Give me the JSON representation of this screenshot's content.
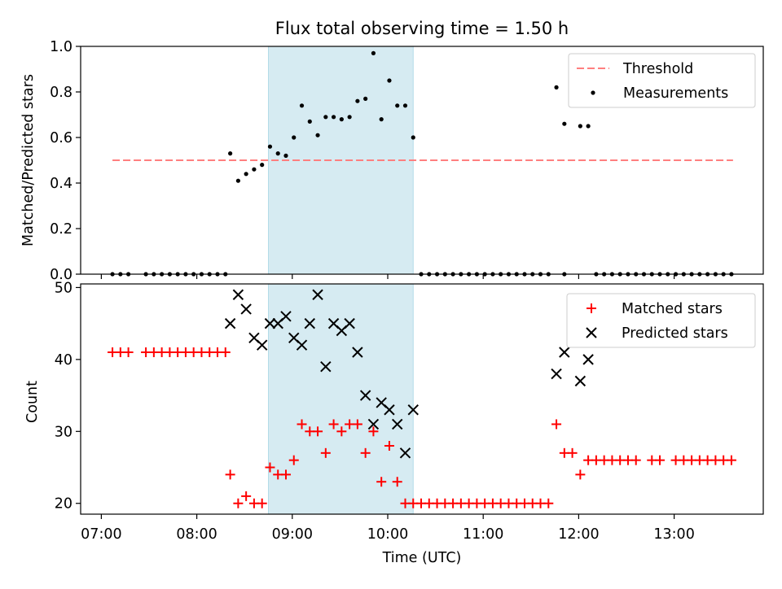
{
  "chart_data": [
    {
      "type": "scatter",
      "title": "Flux total observing time = 1.50 h",
      "xlabel": "",
      "ylabel": "Matched/Predicted stars",
      "ylim": [
        0.0,
        1.0
      ],
      "yticks": [
        "0.0",
        "0.2",
        "0.4",
        "0.6",
        "0.8",
        "1.0"
      ],
      "xlim": [
        "06:47",
        "13:56"
      ],
      "shaded_region": [
        "08:45",
        "10:16"
      ],
      "shaded_color": "#add8e6",
      "legend_position": "top-right",
      "threshold": {
        "name": "Threshold",
        "value": 0.5,
        "x_start": "07:07",
        "x_end": "13:37",
        "color": "#ff7f7f",
        "style": "dashed"
      },
      "series": [
        {
          "name": "Measurements",
          "color": "#000000",
          "marker": "dot",
          "points": [
            [
              "07:07",
              0
            ],
            [
              "07:12",
              0
            ],
            [
              "07:17",
              0
            ],
            [
              "07:28",
              0
            ],
            [
              "07:33",
              0
            ],
            [
              "07:38",
              0
            ],
            [
              "07:43",
              0
            ],
            [
              "07:48",
              0
            ],
            [
              "07:53",
              0
            ],
            [
              "07:58",
              0
            ],
            [
              "08:03",
              0
            ],
            [
              "08:08",
              0
            ],
            [
              "08:13",
              0
            ],
            [
              "08:18",
              0
            ],
            [
              "08:21",
              0.53
            ],
            [
              "08:26",
              0.41
            ],
            [
              "08:31",
              0.44
            ],
            [
              "08:36",
              0.46
            ],
            [
              "08:41",
              0.48
            ],
            [
              "08:46",
              0.56
            ],
            [
              "08:51",
              0.53
            ],
            [
              "08:56",
              0.52
            ],
            [
              "09:01",
              0.6
            ],
            [
              "09:06",
              0.74
            ],
            [
              "09:11",
              0.67
            ],
            [
              "09:16",
              0.61
            ],
            [
              "09:21",
              0.69
            ],
            [
              "09:26",
              0.69
            ],
            [
              "09:31",
              0.68
            ],
            [
              "09:36",
              0.69
            ],
            [
              "09:41",
              0.76
            ],
            [
              "09:46",
              0.77
            ],
            [
              "09:51",
              0.97
            ],
            [
              "09:56",
              0.68
            ],
            [
              "10:01",
              0.85
            ],
            [
              "10:06",
              0.74
            ],
            [
              "10:11",
              0.74
            ],
            [
              "10:16",
              0.6
            ],
            [
              "10:21",
              0
            ],
            [
              "10:26",
              0
            ],
            [
              "10:31",
              0
            ],
            [
              "10:36",
              0
            ],
            [
              "10:41",
              0
            ],
            [
              "10:46",
              0
            ],
            [
              "10:51",
              0
            ],
            [
              "10:56",
              0
            ],
            [
              "11:01",
              0
            ],
            [
              "11:06",
              0
            ],
            [
              "11:11",
              0
            ],
            [
              "11:16",
              0
            ],
            [
              "11:21",
              0
            ],
            [
              "11:26",
              0
            ],
            [
              "11:31",
              0
            ],
            [
              "11:36",
              0
            ],
            [
              "11:41",
              0
            ],
            [
              "11:51",
              0
            ],
            [
              "11:46",
              0.82
            ],
            [
              "11:51",
              0.66
            ],
            [
              "12:01",
              0.65
            ],
            [
              "12:06",
              0.65
            ],
            [
              "12:11",
              0
            ],
            [
              "12:16",
              0
            ],
            [
              "12:21",
              0
            ],
            [
              "12:26",
              0
            ],
            [
              "12:31",
              0
            ],
            [
              "12:36",
              0
            ],
            [
              "12:41",
              0
            ],
            [
              "12:46",
              0
            ],
            [
              "12:51",
              0
            ],
            [
              "12:56",
              0
            ],
            [
              "13:01",
              0
            ],
            [
              "13:06",
              0
            ],
            [
              "13:11",
              0
            ],
            [
              "13:16",
              0
            ],
            [
              "13:21",
              0
            ],
            [
              "13:26",
              0
            ],
            [
              "13:31",
              0
            ],
            [
              "13:36",
              0
            ]
          ]
        }
      ]
    },
    {
      "type": "scatter",
      "title": "",
      "xlabel": "Time (UTC)",
      "ylabel": "Count",
      "ylim": [
        18.5,
        50.5
      ],
      "yticks": [
        "20",
        "30",
        "40",
        "50"
      ],
      "xticks": [
        "07:00",
        "08:00",
        "09:00",
        "10:00",
        "11:00",
        "12:00",
        "13:00"
      ],
      "xlim": [
        "06:47",
        "13:56"
      ],
      "shaded_region": [
        "08:45",
        "10:16"
      ],
      "shaded_color": "#add8e6",
      "legend_position": "top-right",
      "series": [
        {
          "name": "Matched stars",
          "color": "#ff0000",
          "marker": "plus",
          "points": [
            [
              "07:07",
              41
            ],
            [
              "07:12",
              41
            ],
            [
              "07:17",
              41
            ],
            [
              "07:28",
              41
            ],
            [
              "07:33",
              41
            ],
            [
              "07:38",
              41
            ],
            [
              "07:43",
              41
            ],
            [
              "07:48",
              41
            ],
            [
              "07:53",
              41
            ],
            [
              "07:58",
              41
            ],
            [
              "08:03",
              41
            ],
            [
              "08:08",
              41
            ],
            [
              "08:13",
              41
            ],
            [
              "08:18",
              41
            ],
            [
              "08:21",
              24
            ],
            [
              "08:26",
              20
            ],
            [
              "08:31",
              21
            ],
            [
              "08:36",
              20
            ],
            [
              "08:41",
              20
            ],
            [
              "08:46",
              25
            ],
            [
              "08:51",
              24
            ],
            [
              "08:56",
              24
            ],
            [
              "09:01",
              26
            ],
            [
              "09:06",
              31
            ],
            [
              "09:11",
              30
            ],
            [
              "09:16",
              30
            ],
            [
              "09:21",
              27
            ],
            [
              "09:26",
              31
            ],
            [
              "09:31",
              30
            ],
            [
              "09:36",
              31
            ],
            [
              "09:41",
              31
            ],
            [
              "09:46",
              27
            ],
            [
              "09:51",
              30
            ],
            [
              "09:56",
              23
            ],
            [
              "10:01",
              28
            ],
            [
              "10:06",
              23
            ],
            [
              "10:11",
              20
            ],
            [
              "10:16",
              20
            ],
            [
              "10:21",
              20
            ],
            [
              "10:26",
              20
            ],
            [
              "10:31",
              20
            ],
            [
              "10:36",
              20
            ],
            [
              "10:41",
              20
            ],
            [
              "10:46",
              20
            ],
            [
              "10:51",
              20
            ],
            [
              "10:56",
              20
            ],
            [
              "11:01",
              20
            ],
            [
              "11:06",
              20
            ],
            [
              "11:11",
              20
            ],
            [
              "11:16",
              20
            ],
            [
              "11:21",
              20
            ],
            [
              "11:26",
              20
            ],
            [
              "11:31",
              20
            ],
            [
              "11:36",
              20
            ],
            [
              "11:41",
              20
            ],
            [
              "11:46",
              31
            ],
            [
              "11:51",
              27
            ],
            [
              "11:56",
              27
            ],
            [
              "12:01",
              24
            ],
            [
              "12:06",
              26
            ],
            [
              "12:11",
              26
            ],
            [
              "12:16",
              26
            ],
            [
              "12:21",
              26
            ],
            [
              "12:26",
              26
            ],
            [
              "12:31",
              26
            ],
            [
              "12:36",
              26
            ],
            [
              "12:46",
              26
            ],
            [
              "12:51",
              26
            ],
            [
              "13:01",
              26
            ],
            [
              "13:06",
              26
            ],
            [
              "13:11",
              26
            ],
            [
              "13:16",
              26
            ],
            [
              "13:21",
              26
            ],
            [
              "13:26",
              26
            ],
            [
              "13:31",
              26
            ],
            [
              "13:36",
              26
            ]
          ]
        },
        {
          "name": "Predicted stars",
          "color": "#000000",
          "marker": "x",
          "points": [
            [
              "08:21",
              45
            ],
            [
              "08:26",
              49
            ],
            [
              "08:31",
              47
            ],
            [
              "08:36",
              43
            ],
            [
              "08:41",
              42
            ],
            [
              "08:46",
              45
            ],
            [
              "08:51",
              45
            ],
            [
              "08:56",
              46
            ],
            [
              "09:01",
              43
            ],
            [
              "09:06",
              42
            ],
            [
              "09:11",
              45
            ],
            [
              "09:16",
              49
            ],
            [
              "09:21",
              39
            ],
            [
              "09:26",
              45
            ],
            [
              "09:31",
              44
            ],
            [
              "09:36",
              45
            ],
            [
              "09:41",
              41
            ],
            [
              "09:46",
              35
            ],
            [
              "09:51",
              31
            ],
            [
              "09:56",
              34
            ],
            [
              "10:01",
              33
            ],
            [
              "10:06",
              31
            ],
            [
              "10:11",
              27
            ],
            [
              "10:16",
              33
            ],
            [
              "11:46",
              38
            ],
            [
              "11:51",
              41
            ],
            [
              "12:01",
              37
            ],
            [
              "12:06",
              40
            ]
          ]
        }
      ]
    }
  ]
}
